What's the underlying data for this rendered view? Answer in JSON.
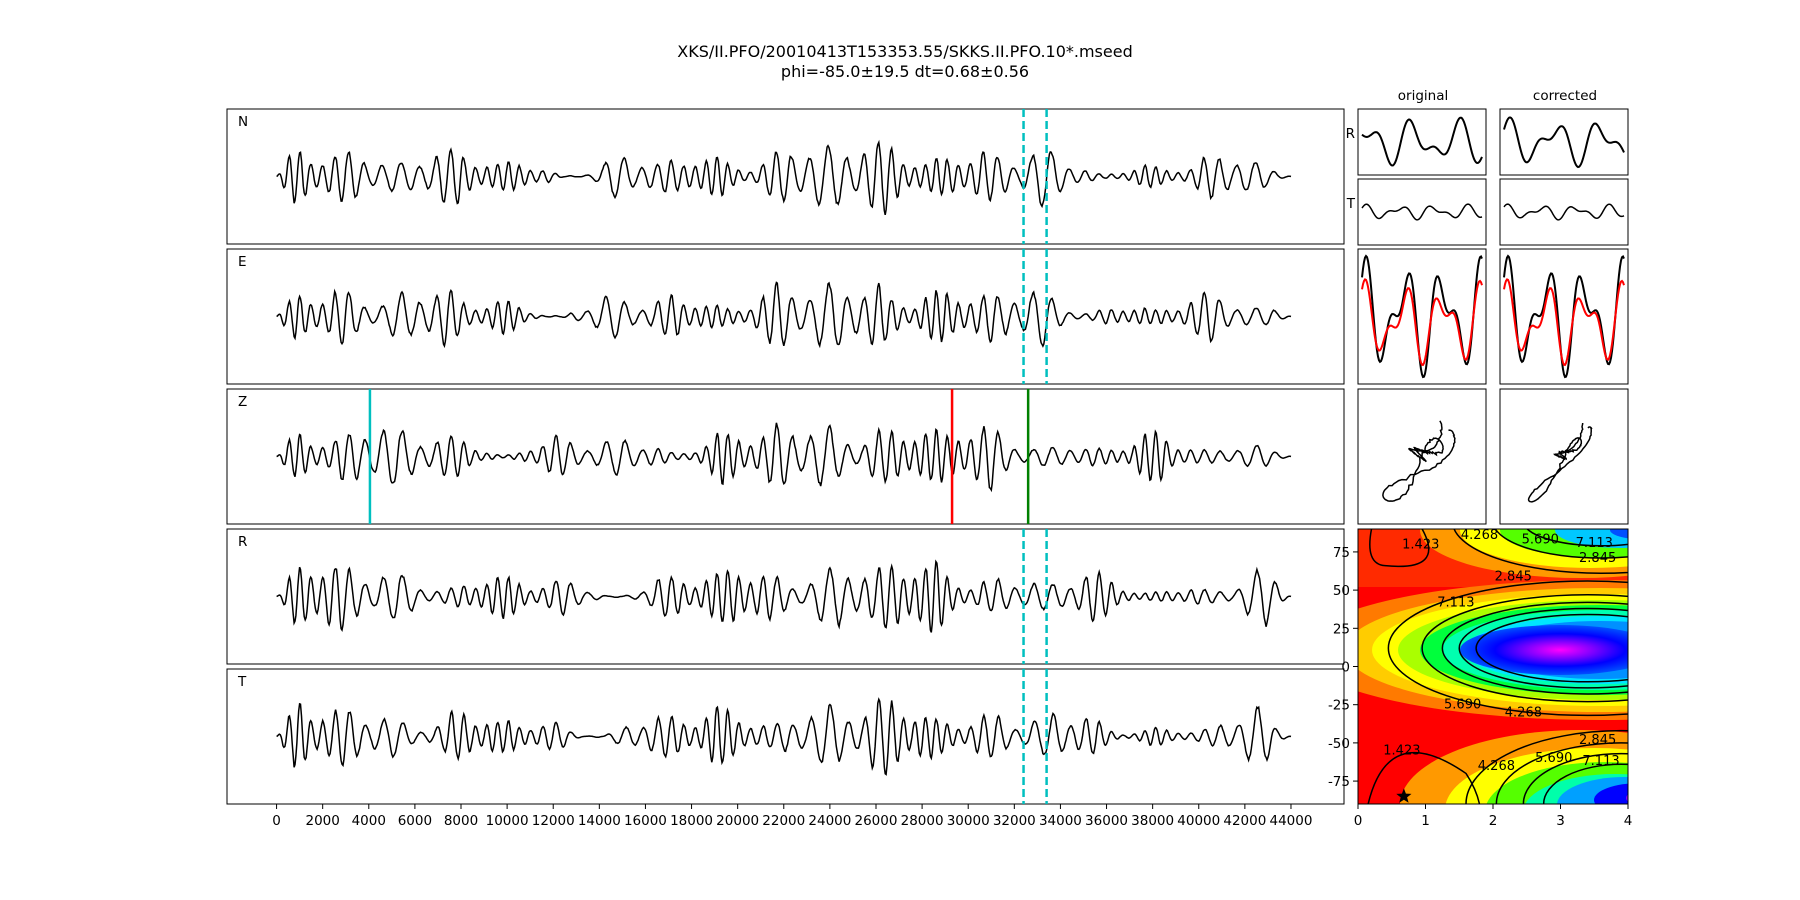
{
  "figure": {
    "title_line1": "XKS/II.PFO/20010413T153353.55/SKKS.II.PFO.10*.mseed",
    "title_line2": "phi=-85.0±19.5 dt=0.68±0.56"
  },
  "chart_data": [
    {
      "type": "line",
      "name": "component traces",
      "panels": [
        {
          "label": "N",
          "seed": 11
        },
        {
          "label": "E",
          "seed": 23
        },
        {
          "label": "Z",
          "seed": 37
        },
        {
          "label": "R",
          "seed": 41
        },
        {
          "label": "T",
          "seed": 53
        }
      ],
      "xlim": [
        -2150,
        46300
      ],
      "x_range": [
        0,
        44000
      ],
      "x_ticks": [
        0,
        2000,
        4000,
        6000,
        8000,
        10000,
        12000,
        14000,
        16000,
        18000,
        20000,
        22000,
        24000,
        26000,
        28000,
        30000,
        32000,
        34000,
        36000,
        38000,
        40000,
        42000,
        44000
      ],
      "window_lines": {
        "x": [
          32400,
          33400
        ],
        "color": "#00bfbf",
        "style": "dashed",
        "panels": [
          "N",
          "E",
          "R",
          "T"
        ]
      },
      "z_markers": [
        {
          "x": 4050,
          "color": "#00bfbf"
        },
        {
          "x": 29300,
          "color": "#ff0000"
        },
        {
          "x": 32600,
          "color": "#008000"
        }
      ]
    },
    {
      "type": "line",
      "name": "particle motion panels",
      "column_titles": [
        "original",
        "corrected"
      ],
      "row_labels": [
        "R",
        "T"
      ],
      "overlay_colors": [
        "#000000",
        "#ff0000"
      ]
    },
    {
      "type": "heatmap",
      "name": "error surface",
      "x_ticks": [
        0,
        1,
        2,
        3,
        4
      ],
      "y_ticks": [
        75,
        50,
        25,
        0,
        -25,
        -50,
        -75
      ],
      "xlim": [
        0,
        4
      ],
      "ylim": [
        -90,
        90
      ],
      "contour_labels": [
        {
          "text": "1.423",
          "x": 0.93,
          "y": 80
        },
        {
          "text": "4.268",
          "x": 1.8,
          "y": 86
        },
        {
          "text": "5.690",
          "x": 2.7,
          "y": 83
        },
        {
          "text": "7.113",
          "x": 3.5,
          "y": 81
        },
        {
          "text": "2.845",
          "x": 3.55,
          "y": 71
        },
        {
          "text": "2.845",
          "x": 2.3,
          "y": 59
        },
        {
          "text": "7.113",
          "x": 1.45,
          "y": 42
        },
        {
          "text": "5.690",
          "x": 1.55,
          "y": -25
        },
        {
          "text": "4.268",
          "x": 2.45,
          "y": -30
        },
        {
          "text": "2.845",
          "x": 3.55,
          "y": -48
        },
        {
          "text": "1.423",
          "x": 0.65,
          "y": -55
        },
        {
          "text": "4.268",
          "x": 2.05,
          "y": -65
        },
        {
          "text": "5.690",
          "x": 2.9,
          "y": -60
        },
        {
          "text": "7.113",
          "x": 3.6,
          "y": -62
        }
      ],
      "best_fit_marker": {
        "x": 0.68,
        "y": -85.0,
        "symbol": "star"
      }
    }
  ]
}
